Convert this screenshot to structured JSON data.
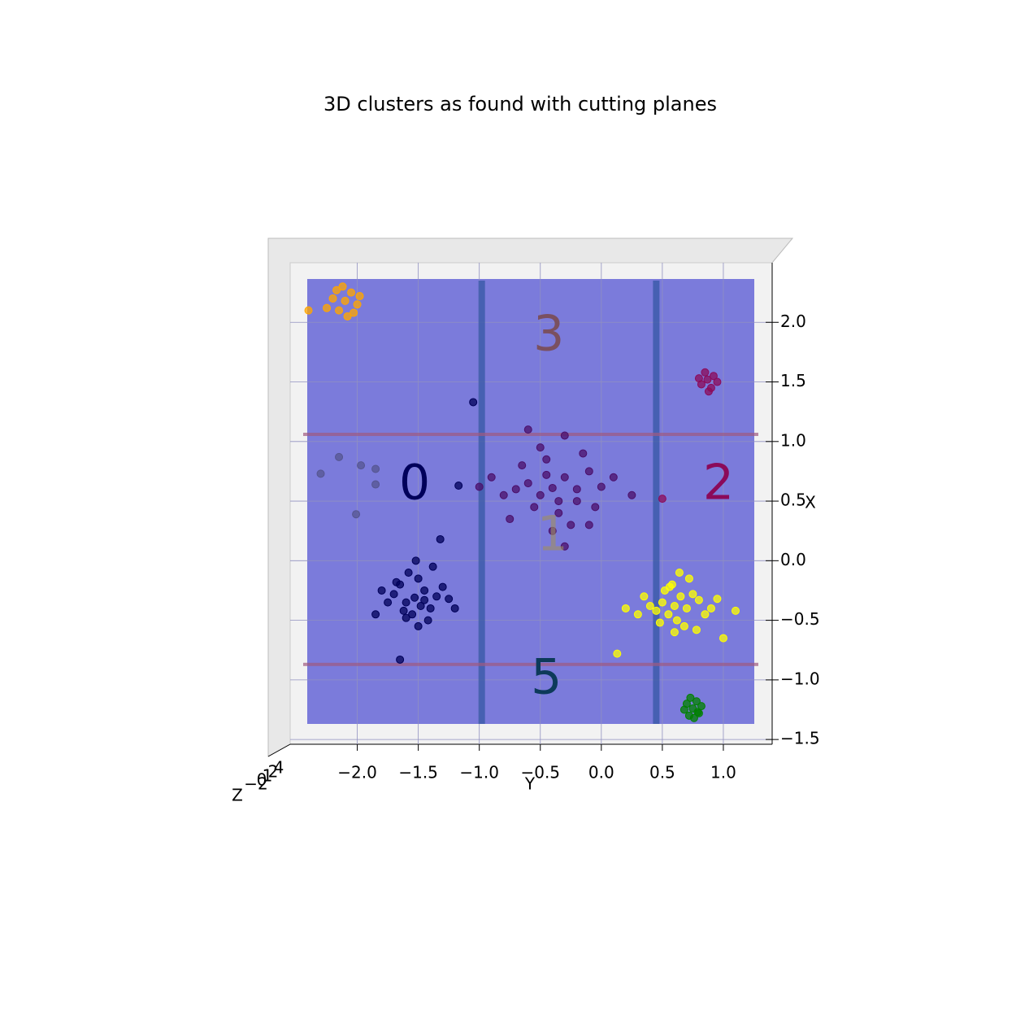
{
  "chart_data": {
    "type": "scatter",
    "title": "3D clusters as found with cutting planes",
    "x_label": "Y",
    "y_label": "X",
    "z_label": "Z",
    "xlim": [
      -2.55,
      1.4
    ],
    "ylim": [
      -1.54,
      2.5
    ],
    "xticks": [
      {
        "value": -2,
        "label": "−2.0"
      },
      {
        "value": -1.5,
        "label": "−1.5"
      },
      {
        "value": -1,
        "label": "−1.0"
      },
      {
        "value": -0.5,
        "label": "−0.5"
      },
      {
        "value": 0,
        "label": "0.0"
      },
      {
        "value": 0.5,
        "label": "0.5"
      },
      {
        "value": 1,
        "label": "1.0"
      }
    ],
    "yticks": [
      {
        "value": 2,
        "label": "2.0"
      },
      {
        "value": 1.5,
        "label": "1.5"
      },
      {
        "value": 1,
        "label": "1.0"
      },
      {
        "value": 0.5,
        "label": "0.5"
      },
      {
        "value": 0,
        "label": "0.0"
      },
      {
        "value": -0.5,
        "label": "−0.5"
      },
      {
        "value": -1,
        "label": "−1.0"
      },
      {
        "value": -1.5,
        "label": "−1.5"
      }
    ],
    "zticks": [
      "−2",
      "0",
      "1",
      "2",
      "4"
    ],
    "cutting_planes": {
      "x": [
        -0.98,
        0.45
      ],
      "y": [
        1.06,
        -0.87
      ]
    },
    "annotations": [
      {
        "text": "3",
        "x": -0.43,
        "y": 1.88,
        "color": "#7a5060"
      },
      {
        "text": "0",
        "x": -1.53,
        "y": 0.63,
        "color": "#00005a"
      },
      {
        "text": "2",
        "x": 0.96,
        "y": 0.63,
        "color": "#8b0a5a"
      },
      {
        "text": "5",
        "x": -0.45,
        "y": -1.0,
        "color": "#0d3a5a"
      },
      {
        "text": "1",
        "x": -0.4,
        "y": 0.2,
        "color": "#a09060"
      }
    ],
    "series": [
      {
        "color": "#ffa500",
        "x": [
          -2.1,
          -2.05,
          -2.15,
          -2.0,
          -2.2,
          -2.08,
          -2.12,
          -1.98,
          -2.25,
          -2.03,
          -2.4,
          -2.17
        ],
        "values": [
          2.18,
          2.25,
          2.1,
          2.15,
          2.2,
          2.05,
          2.3,
          2.22,
          2.12,
          2.08,
          2.1,
          2.27
        ]
      },
      {
        "color": "#8b0a5a",
        "x": [
          0.87,
          0.82,
          0.92,
          0.85,
          0.9,
          0.8,
          0.95,
          0.88,
          0.5
        ],
        "values": [
          1.52,
          1.48,
          1.55,
          1.58,
          1.45,
          1.53,
          1.5,
          1.42,
          0.52
        ]
      },
      {
        "color": "#4b0f6b",
        "x": [
          -0.4,
          -0.3,
          -0.5,
          -0.6,
          -0.2,
          -0.1,
          -0.7,
          -0.45,
          -0.35,
          -0.8,
          0.0,
          -0.25,
          -0.55,
          -0.15,
          -0.9,
          -0.05,
          -0.65,
          -0.3,
          -0.4,
          0.1,
          -0.5,
          -0.75,
          -0.2,
          -0.35,
          -1.0,
          0.25,
          -0.6,
          -0.1,
          -0.45,
          -0.3
        ],
        "values": [
          0.61,
          0.7,
          0.55,
          0.65,
          0.5,
          0.75,
          0.6,
          0.85,
          0.4,
          0.55,
          0.62,
          0.3,
          0.45,
          0.9,
          0.7,
          0.45,
          0.8,
          1.05,
          0.25,
          0.7,
          0.95,
          0.35,
          0.6,
          0.5,
          0.62,
          0.55,
          1.1,
          0.3,
          0.72,
          0.12
        ]
      },
      {
        "color": "#00005a",
        "x": [
          -1.53,
          -1.45,
          -1.6,
          -1.4,
          -1.65,
          -1.5,
          -1.35,
          -1.7,
          -1.55,
          -1.48,
          -1.3,
          -1.75,
          -1.58,
          -1.42,
          -1.62,
          -1.25,
          -1.8,
          -1.5,
          -1.38,
          -1.68,
          -1.2,
          -1.85,
          -1.52,
          -1.45,
          -1.6,
          -1.05,
          -1.17,
          -1.32,
          -1.65
        ],
        "values": [
          -0.31,
          -0.25,
          -0.35,
          -0.4,
          -0.2,
          -0.15,
          -0.3,
          -0.28,
          -0.45,
          -0.38,
          -0.22,
          -0.35,
          -0.1,
          -0.5,
          -0.42,
          -0.32,
          -0.25,
          -0.55,
          -0.05,
          -0.18,
          -0.4,
          -0.45,
          0.0,
          -0.33,
          -0.48,
          1.33,
          0.63,
          0.18,
          -0.83
        ]
      },
      {
        "color": "#555590",
        "x": [
          -2.3,
          -2.15,
          -1.97,
          -1.85,
          -2.01,
          -1.85
        ],
        "values": [
          0.73,
          0.87,
          0.8,
          0.64,
          0.39,
          0.77
        ]
      },
      {
        "color": "#ffff00",
        "x": [
          0.6,
          0.65,
          0.55,
          0.7,
          0.5,
          0.75,
          0.62,
          0.45,
          0.8,
          0.58,
          0.68,
          0.4,
          0.85,
          0.52,
          0.72,
          0.35,
          0.9,
          0.6,
          0.48,
          0.78,
          0.3,
          0.95,
          0.64,
          0.56,
          0.13,
          1.1,
          0.2,
          1.0
        ],
        "values": [
          -0.38,
          -0.3,
          -0.45,
          -0.4,
          -0.35,
          -0.28,
          -0.5,
          -0.42,
          -0.33,
          -0.2,
          -0.55,
          -0.38,
          -0.45,
          -0.25,
          -0.15,
          -0.3,
          -0.4,
          -0.6,
          -0.52,
          -0.58,
          -0.45,
          -0.32,
          -0.1,
          -0.22,
          -0.78,
          -0.42,
          -0.4,
          -0.65
        ]
      },
      {
        "color": "#008000",
        "x": [
          0.75,
          0.7,
          0.8,
          0.72,
          0.78,
          0.68,
          0.82,
          0.76,
          0.73,
          0.79
        ],
        "values": [
          -1.24,
          -1.2,
          -1.28,
          -1.3,
          -1.18,
          -1.25,
          -1.22,
          -1.32,
          -1.15,
          -1.27
        ]
      }
    ]
  }
}
